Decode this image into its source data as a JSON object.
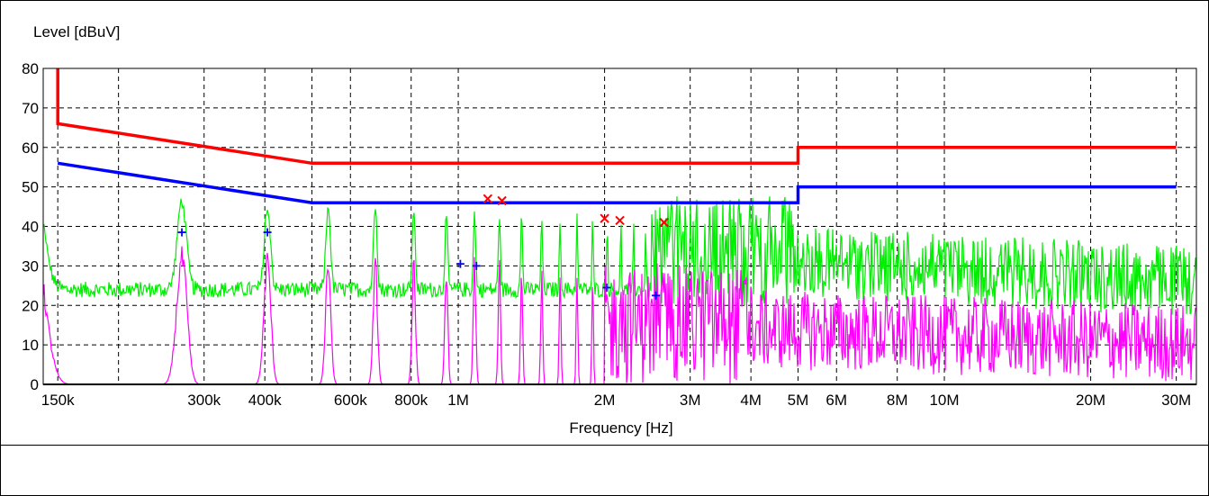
{
  "chart_data": {
    "type": "line",
    "ylabel": "Level [dBuV]",
    "xlabel": "Frequency [Hz]",
    "x_scale": "log",
    "xlim": [
      140000,
      33000000
    ],
    "ylim": [
      0,
      80
    ],
    "grid": true,
    "y_ticks": [
      0,
      10,
      20,
      30,
      40,
      50,
      60,
      70,
      80
    ],
    "x_ticks": [
      {
        "value": 150000,
        "label": "150k"
      },
      {
        "value": 300000,
        "label": "300k"
      },
      {
        "value": 400000,
        "label": "400k"
      },
      {
        "value": 600000,
        "label": "600k"
      },
      {
        "value": 800000,
        "label": "800k"
      },
      {
        "value": 1000000,
        "label": "1M"
      },
      {
        "value": 2000000,
        "label": "2M"
      },
      {
        "value": 3000000,
        "label": "3M"
      },
      {
        "value": 4000000,
        "label": "4M"
      },
      {
        "value": 5000000,
        "label": "5M"
      },
      {
        "value": 6000000,
        "label": "6M"
      },
      {
        "value": 8000000,
        "label": "8M"
      },
      {
        "value": 10000000,
        "label": "10M"
      },
      {
        "value": 20000000,
        "label": "20M"
      },
      {
        "value": 30000000,
        "label": "30M"
      }
    ],
    "x_grid": [
      150000,
      200000,
      300000,
      400000,
      500000,
      600000,
      800000,
      1000000,
      2000000,
      3000000,
      4000000,
      5000000,
      6000000,
      8000000,
      10000000,
      20000000,
      30000000
    ],
    "limit_lines": [
      {
        "color": "#ff0000",
        "points": [
          [
            150000,
            80
          ],
          [
            150000,
            66
          ],
          [
            500000,
            56
          ],
          [
            5000000,
            56
          ],
          [
            5000000,
            60
          ],
          [
            30000000,
            60
          ]
        ]
      },
      {
        "color": "#0000ff",
        "points": [
          [
            150000,
            56
          ],
          [
            500000,
            46
          ],
          [
            5000000,
            46
          ],
          [
            5000000,
            50
          ],
          [
            30000000,
            50
          ]
        ]
      }
    ],
    "series": [
      {
        "color": "#00ee00"
      },
      {
        "color": "#ff00ff"
      }
    ],
    "markers": [
      {
        "symbol": "x",
        "color": "#ff0000",
        "x": 1150000,
        "y": 47
      },
      {
        "symbol": "x",
        "color": "#ff0000",
        "x": 1230000,
        "y": 46.5
      },
      {
        "symbol": "x",
        "color": "#ff0000",
        "x": 2000000,
        "y": 42
      },
      {
        "symbol": "x",
        "color": "#ff0000",
        "x": 2150000,
        "y": 41.5
      },
      {
        "symbol": "x",
        "color": "#ff0000",
        "x": 2650000,
        "y": 41
      },
      {
        "symbol": "+",
        "color": "#0000ff",
        "x": 270000,
        "y": 38.5
      },
      {
        "symbol": "+",
        "color": "#0000ff",
        "x": 405000,
        "y": 38.5
      },
      {
        "symbol": "+",
        "color": "#0000ff",
        "x": 1010000,
        "y": 30.5
      },
      {
        "symbol": "+",
        "color": "#0000ff",
        "x": 1090000,
        "y": 30
      },
      {
        "symbol": "+",
        "color": "#0000ff",
        "x": 2020000,
        "y": 24.5
      },
      {
        "symbol": "+",
        "color": "#0000ff",
        "x": 2550000,
        "y": 22.5
      }
    ]
  }
}
